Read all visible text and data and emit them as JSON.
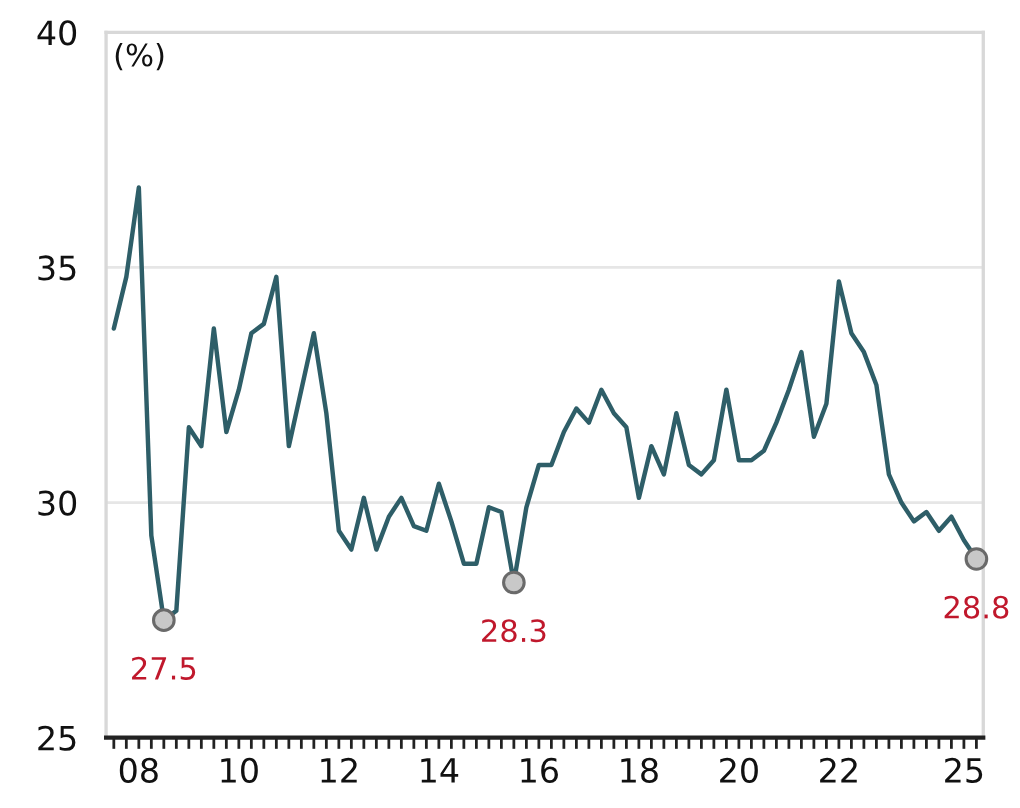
{
  "chart_data": {
    "type": "line",
    "ylabel": "(%)",
    "categories": [
      null,
      null,
      "08",
      null,
      null,
      null,
      null,
      null,
      null,
      null,
      "10",
      null,
      null,
      null,
      null,
      null,
      null,
      null,
      "12",
      null,
      null,
      null,
      null,
      null,
      null,
      null,
      "14",
      null,
      null,
      null,
      null,
      null,
      null,
      null,
      "16",
      null,
      null,
      null,
      null,
      null,
      null,
      null,
      "18",
      null,
      null,
      null,
      null,
      null,
      null,
      null,
      "20",
      null,
      null,
      null,
      null,
      null,
      null,
      null,
      "22",
      null,
      null,
      null,
      null,
      null,
      null,
      null,
      null,
      null,
      "25",
      null
    ],
    "series": [
      {
        "color": "#2e5e68",
        "values": [
          33.7,
          34.8,
          36.7,
          29.3,
          27.5,
          27.7,
          31.6,
          31.2,
          33.7,
          31.5,
          32.4,
          33.6,
          33.8,
          34.8,
          31.2,
          32.4,
          33.6,
          31.9,
          29.4,
          29.0,
          30.1,
          29.0,
          29.7,
          30.1,
          29.5,
          29.4,
          30.4,
          29.6,
          28.7,
          28.7,
          29.9,
          29.8,
          28.3,
          29.9,
          30.8,
          30.8,
          31.5,
          32.0,
          31.7,
          32.4,
          31.9,
          31.6,
          30.1,
          31.2,
          30.6,
          31.9,
          30.8,
          30.6,
          30.9,
          32.4,
          30.9,
          30.9,
          31.1,
          31.7,
          32.4,
          33.2,
          31.4,
          32.1,
          34.7,
          33.6,
          33.2,
          32.5,
          30.6,
          30.0,
          29.6,
          29.8,
          29.4,
          29.7,
          29.2,
          28.8
        ]
      },
      {
        "type": "scatter",
        "color": "#c8c8c8",
        "marker": "circle",
        "values": [
          null,
          null,
          null,
          null,
          27.5,
          null,
          null,
          null,
          null,
          null,
          null,
          null,
          null,
          null,
          null,
          null,
          null,
          null,
          null,
          null,
          null,
          null,
          null,
          null,
          null,
          null,
          null,
          null,
          null,
          null,
          null,
          null,
          28.3,
          null,
          null,
          null,
          null,
          null,
          null,
          null,
          null,
          null,
          null,
          null,
          null,
          null,
          null,
          null,
          null,
          null,
          null,
          null,
          null,
          null,
          null,
          null,
          null,
          null,
          null,
          null,
          null,
          null,
          null,
          null,
          null,
          null,
          null,
          null,
          null,
          28.8
        ],
        "value_labels": [
          null,
          null,
          null,
          null,
          "27.5",
          null,
          null,
          null,
          null,
          null,
          null,
          null,
          null,
          null,
          null,
          null,
          null,
          null,
          null,
          null,
          null,
          null,
          null,
          null,
          null,
          null,
          null,
          null,
          null,
          null,
          null,
          null,
          "28.3",
          null,
          null,
          null,
          null,
          null,
          null,
          null,
          null,
          null,
          null,
          null,
          null,
          null,
          null,
          null,
          null,
          null,
          null,
          null,
          null,
          null,
          null,
          null,
          null,
          null,
          null,
          null,
          null,
          null,
          null,
          null,
          null,
          null,
          null,
          null,
          null,
          "28.8"
        ]
      }
    ],
    "ylim": [
      25,
      40
    ],
    "yticks": [
      25,
      30,
      35,
      40
    ],
    "grid": "y"
  }
}
